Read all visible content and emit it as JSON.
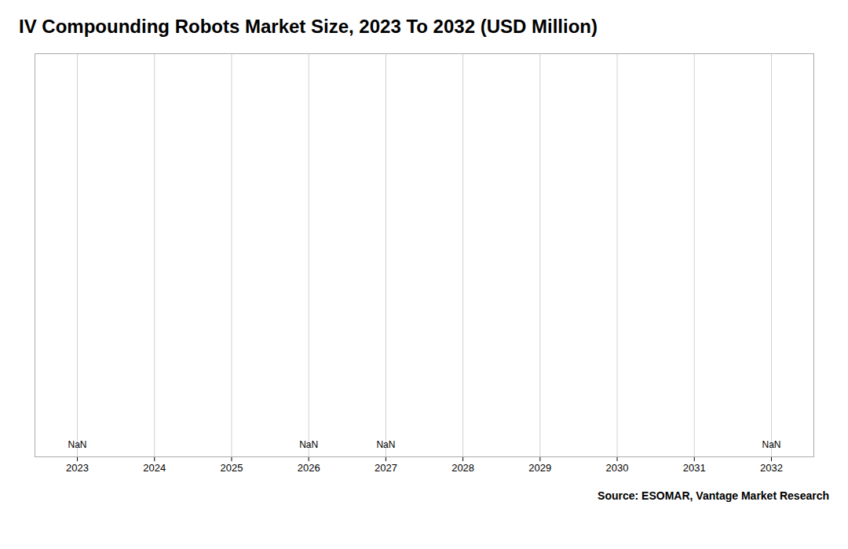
{
  "chart_data": {
    "type": "line",
    "title": "IV Compounding Robots Market Size, 2023 To 2032 (USD Million)",
    "caption": "Source: ESOMAR, Vantage Market Research",
    "x": [
      2023,
      2024,
      2025,
      2026,
      2027,
      2028,
      2029,
      2030,
      2031,
      2032
    ],
    "values": [
      null,
      null,
      null,
      null,
      null,
      null,
      null,
      null,
      null,
      null
    ],
    "xlim": [
      2022.45,
      2032.55
    ],
    "xticks": [
      2023,
      2024,
      2025,
      2026,
      2027,
      2028,
      2029,
      2030,
      2031,
      2032
    ],
    "ylim": [
      0,
      1
    ],
    "tick_labels": "x",
    "grid": true,
    "annotations": [
      {
        "x": 2023,
        "text": "NaN"
      },
      {
        "x": 2026,
        "text": "NaN"
      },
      {
        "x": 2027,
        "text": "NaN"
      },
      {
        "x": 2032,
        "text": "NaN"
      }
    ]
  }
}
